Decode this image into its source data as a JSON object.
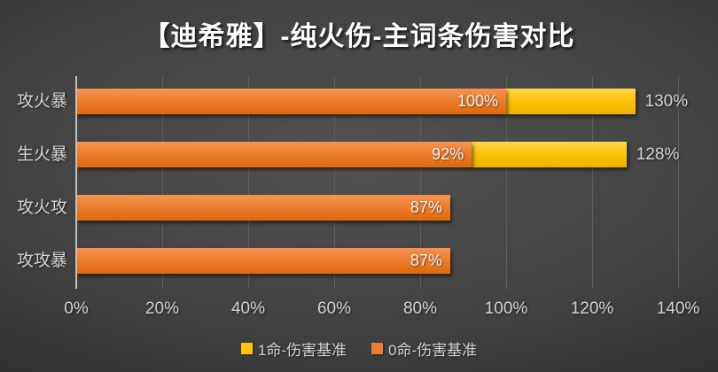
{
  "title": "【迪希雅】-纯火伤-主词条伤害对比",
  "colors": {
    "background_center": "#525252",
    "background_edge": "#212121",
    "bar_orange": "#ED7D31",
    "bar_yellow": "#FFC30B",
    "axis_line": "#C0C0C0",
    "gridline": "#5F5F5F",
    "text_light": "#D2D2D2"
  },
  "chart_data": {
    "type": "bar",
    "orientation": "horizontal",
    "title": "【迪希雅】-纯火伤-主词条伤害对比",
    "categories": [
      "攻火暴",
      "生火暴",
      "攻火攻",
      "攻攻暴"
    ],
    "series": [
      {
        "name": "0命-伤害基准",
        "color": "#ED7D31",
        "values": [
          100,
          92,
          87,
          87
        ],
        "labels": [
          "100%",
          "92%",
          "87%",
          "87%"
        ]
      },
      {
        "name": "1命-伤害基准",
        "color": "#FFC30B",
        "values": [
          130,
          128,
          null,
          null
        ],
        "labels": [
          "130%",
          "128%",
          null,
          null
        ]
      }
    ],
    "xlabel": "",
    "ylabel": "",
    "x_axis": {
      "min": 0,
      "max": 140,
      "step": 20,
      "ticks": [
        "0%",
        "20%",
        "40%",
        "60%",
        "80%",
        "100%",
        "120%",
        "140%"
      ]
    },
    "grid": true,
    "legend_position": "bottom",
    "legend": [
      {
        "label": "1命-伤害基准",
        "color": "#FFC30B",
        "swatch": "yellow"
      },
      {
        "label": "0命-伤害基准",
        "color": "#ED7D31",
        "swatch": "orange"
      }
    ]
  }
}
